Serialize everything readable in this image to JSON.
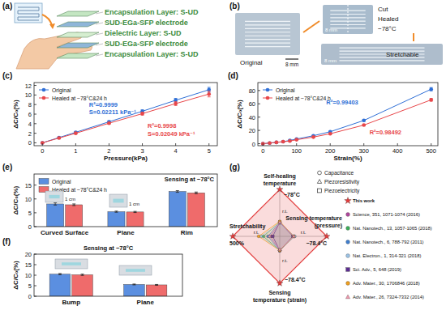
{
  "panels": [
    "(a)",
    "(b)",
    "(c)",
    "(d)",
    "(e)",
    "(f)",
    "(g)"
  ],
  "diagram": {
    "label_color": "#3d8b3d",
    "layers": [
      "Encapsulation Layer: S-UD",
      "SUD-EGa-SFP electrode",
      "Dielectric Layer: S-UD",
      "SUD-EGa-SFP electrode",
      "Encapsulation Layer: S-UD"
    ]
  },
  "photos": {
    "original": "Original",
    "cut": "Cut",
    "healed": "Healed",
    "temperature": "−78°C",
    "stretchable": "Stretchable",
    "scale_bars": [
      "8 mm",
      "8 mm",
      "8 mm"
    ]
  },
  "chart_data": [
    {
      "type": "line",
      "x_label": "Pressure(kPa)",
      "y_label": "ΔC/C₀(%)",
      "x": [
        0,
        0.5,
        1,
        2,
        3,
        4,
        5
      ],
      "series": [
        {
          "name": "Original",
          "color": "#2f6fd6",
          "marker": "circle",
          "values": [
            0,
            1.1,
            2.2,
            4.4,
            6.6,
            8.9,
            11.1
          ],
          "errors": [
            0.05,
            0.1,
            0.15,
            0.2,
            0.3,
            0.4,
            0.5
          ]
        },
        {
          "name": "Healed at −78°C&24 h",
          "color": "#e8474a",
          "marker": "circle",
          "values": [
            0,
            1.0,
            2.0,
            4.1,
            6.1,
            8.2,
            10.2
          ],
          "errors": [
            0.05,
            0.1,
            0.15,
            0.2,
            0.3,
            0.4,
            0.6
          ]
        }
      ],
      "xlim": [
        -0.25,
        5.25
      ],
      "ylim": [
        -0.6,
        12.6
      ],
      "xticks": [
        0,
        1,
        2,
        3,
        4,
        5
      ],
      "yticks": [
        0,
        2,
        4,
        6,
        8,
        10,
        12
      ],
      "legend": "upper left",
      "annotations": [
        {
          "text": "R²=0.9999",
          "color": "#2f6fd6"
        },
        {
          "text": "S=0.02211 kPa⁻¹",
          "color": "#2f6fd6"
        },
        {
          "text": "R²=0.9998",
          "color": "#e8474a"
        },
        {
          "text": "S=0.02049 kPa⁻¹",
          "color": "#e8474a"
        }
      ]
    },
    {
      "type": "line",
      "x_label": "Strain(%)",
      "y_label": "ΔC/C₀(%)",
      "x": [
        0,
        20,
        40,
        60,
        80,
        100,
        150,
        200,
        300,
        500
      ],
      "series": [
        {
          "name": "Original",
          "color": "#2f6fd6",
          "marker": "circle",
          "values": [
            0,
            1,
            2,
            3,
            5,
            7,
            12,
            18,
            35,
            82
          ],
          "errors": [
            0.2,
            0.3,
            0.3,
            0.4,
            0.4,
            0.5,
            0.6,
            0.8,
            1.2,
            2.5
          ]
        },
        {
          "name": "Healed at −78°C&24 h",
          "color": "#e8474a",
          "marker": "circle",
          "values": [
            0,
            1,
            2,
            3,
            4,
            6,
            10,
            15,
            28,
            66
          ],
          "errors": [
            0.2,
            0.3,
            0.3,
            0.4,
            0.4,
            0.5,
            0.6,
            0.8,
            1.0,
            2.0
          ]
        }
      ],
      "xlim": [
        -15,
        520
      ],
      "ylim": [
        -3,
        92
      ],
      "xticks": [
        0,
        100,
        200,
        300,
        400,
        500
      ],
      "yticks": [
        0,
        20,
        40,
        60,
        80
      ],
      "legend": "upper left",
      "annotations": [
        {
          "text": "R²=0.99403",
          "color": "#2f6fd6"
        },
        {
          "text": "R²=0.98492",
          "color": "#e8474a"
        }
      ]
    },
    {
      "type": "bar",
      "title": "Sensing at −78°C",
      "y_label": "ΔC/C₀(%)",
      "categories": [
        "Curved Surface",
        "Plane",
        "Rim"
      ],
      "series": [
        {
          "name": "Original",
          "color": "#5b8fe0",
          "values": [
            8.2,
            5.4,
            12.7
          ],
          "errors": [
            0.4,
            0.2,
            0.3
          ]
        },
        {
          "name": "Healed at −78°C&24 h",
          "color": "#ef6b6b",
          "values": [
            7.9,
            5.3,
            12.2
          ],
          "errors": [
            0.3,
            0.2,
            0.3
          ]
        }
      ],
      "ylim": [
        0,
        19
      ],
      "yticks": [
        0,
        5,
        10,
        15
      ],
      "legend": "upper left",
      "annotations": [
        {
          "text": "1 cm"
        },
        {
          "text": "1 cm"
        }
      ]
    },
    {
      "type": "bar",
      "title": "Sensing at −78°C",
      "y_label": "ΔC/C₀(%)",
      "categories": [
        "Bump",
        "Plane"
      ],
      "series": [
        {
          "name": "Original",
          "color": "#5b8fe0",
          "values": [
            10.5,
            5.6
          ],
          "errors": [
            0.3,
            0.2
          ]
        },
        {
          "name": "Healed at −78°C&24 h",
          "color": "#ef6b6b",
          "values": [
            10.2,
            5.4
          ],
          "errors": [
            0.3,
            0.2
          ]
        }
      ],
      "ylim": [
        0,
        20
      ],
      "yticks": [
        0,
        5,
        10,
        15,
        20
      ]
    }
  ],
  "radar": {
    "rlim": [
      0,
      1
    ],
    "axes": [
      {
        "label_lines": [
          "Self-healing",
          "temperature"
        ],
        "value_label": "−78°C",
        "inner_label": "r.t."
      },
      {
        "label_lines": [
          "Sensing temperature",
          "(pressure)"
        ],
        "value_label": "−78.4°C",
        "inner_label": "r.t."
      },
      {
        "label_lines": [
          "Sensing",
          "temperature (strain)"
        ],
        "value_label": "−78.4°C",
        "inner_label": "r.t."
      },
      {
        "label_lines": [
          "Stretchability"
        ],
        "value_label": "500%",
        "inner_label": "r.t."
      }
    ],
    "marker_types": [
      {
        "marker": "circle",
        "label": "Capacitance"
      },
      {
        "marker": "triangle",
        "label": "Piezoresistivity"
      },
      {
        "marker": "square",
        "label": "Piezoelectricity"
      }
    ],
    "entries": [
      {
        "name": "This work",
        "color": "#e23b3b",
        "marker": "star",
        "scores": [
          1,
          1,
          1,
          1
        ]
      },
      {
        "name": "Science, 351, 1071-1074 (2016)",
        "color": "#b0479e",
        "marker": "circle",
        "scores": [
          0.3,
          0.3,
          0.3,
          0.2
        ]
      },
      {
        "name": "Nat. Nanotech., 13, 1057-1065 (2018)",
        "color": "#3cae5a",
        "marker": "circle",
        "scores": [
          0.3,
          0.3,
          0.3,
          0.35
        ]
      },
      {
        "name": "Nat. Nanotech., 6, 788-792 (2011)",
        "color": "#3f7fd0",
        "marker": "circle",
        "scores": [
          0.3,
          0.3,
          0.3,
          0.25
        ]
      },
      {
        "name": "Nat. Electron., 1, 314-321 (2018)",
        "color": "#9cc3e6",
        "marker": "circle",
        "scores": [
          0.28,
          0.32,
          0.3,
          0.4
        ]
      },
      {
        "name": "Sci. Adv., 5, 648 (2019)",
        "color": "#5b2d90",
        "marker": "square",
        "scores": [
          0.3,
          0.28,
          0.3,
          0.15
        ]
      },
      {
        "name": "Adv. Mater., 30, 1706846 (2018)",
        "color": "#f0a020",
        "marker": "circle",
        "scores": [
          0.32,
          0.3,
          0.3,
          0.45
        ]
      },
      {
        "name": "Adv. Mater., 26, 7324-7332 (2014)",
        "color": "#f09aae",
        "marker": "triangle",
        "scores": [
          0.3,
          0.3,
          0.28,
          0.22
        ]
      }
    ]
  }
}
